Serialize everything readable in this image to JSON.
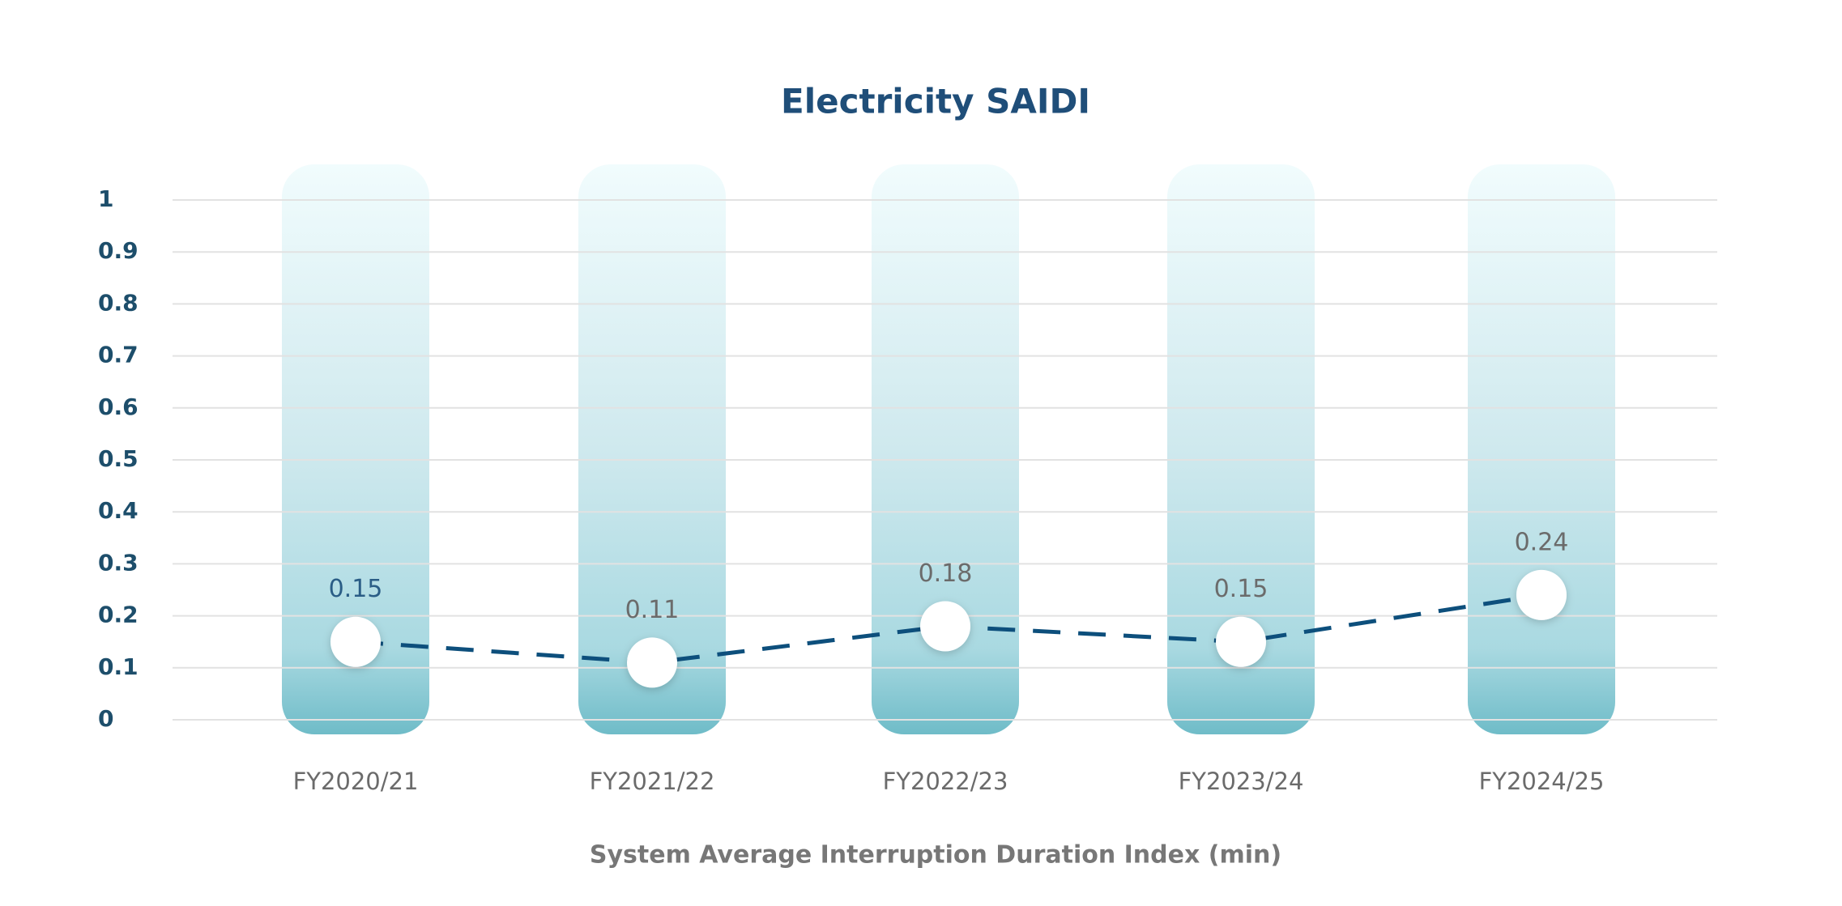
{
  "chart_data": {
    "type": "line",
    "title": "Electricity SAIDI",
    "x_label": "System Average Interruption Duration Index (min)",
    "categories": [
      "FY2020/21",
      "FY2021/22",
      "FY2022/23",
      "FY2023/24",
      "FY2024/25"
    ],
    "values": [
      0.15,
      0.11,
      0.18,
      0.15,
      0.24
    ],
    "color": "#0d4f7c",
    "ylim": [
      0,
      1
    ],
    "yticks": [
      0,
      0.1,
      0.2,
      0.3,
      0.4,
      0.5,
      0.6,
      0.7,
      0.8,
      0.9,
      1
    ],
    "grid": true
  }
}
